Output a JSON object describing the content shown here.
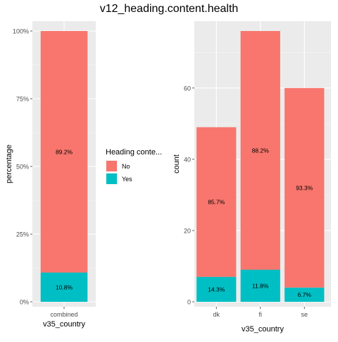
{
  "title": "v12_heading.content.health",
  "legend": {
    "title": "Heading conte...",
    "items": [
      {
        "label": "No",
        "color": "#F8766D"
      },
      {
        "label": "Yes",
        "color": "#00BFC4"
      }
    ]
  },
  "chart_data": [
    {
      "type": "bar",
      "stacked": true,
      "categories": [
        "combined"
      ],
      "series": [
        {
          "name": "No",
          "values": [
            89.2
          ],
          "labels": [
            "89.2%"
          ]
        },
        {
          "name": "Yes",
          "values": [
            10.8
          ],
          "labels": [
            "10.8%"
          ]
        }
      ],
      "xlabel": "v35_country",
      "ylabel": "percentage",
      "ylim": [
        0,
        100
      ],
      "yticks": [
        0,
        25,
        50,
        75,
        100
      ],
      "ytick_labels": [
        "0%",
        "25%",
        "50%",
        "75%",
        "100%"
      ]
    },
    {
      "type": "bar",
      "stacked": true,
      "categories": [
        "dk",
        "fi",
        "se"
      ],
      "series": [
        {
          "name": "No",
          "values": [
            42,
            67,
            56
          ],
          "labels": [
            "85.7%",
            "88.2%",
            "93.3%"
          ]
        },
        {
          "name": "Yes",
          "values": [
            7,
            9,
            4
          ],
          "labels": [
            "14.3%",
            "11.8%",
            "6.7%"
          ]
        }
      ],
      "xlabel": "v35_country",
      "ylabel": "count",
      "ylim": [
        0,
        76
      ],
      "yticks": [
        0,
        20,
        40,
        60
      ],
      "ytick_labels": [
        "0",
        "20",
        "40",
        "60"
      ]
    }
  ]
}
